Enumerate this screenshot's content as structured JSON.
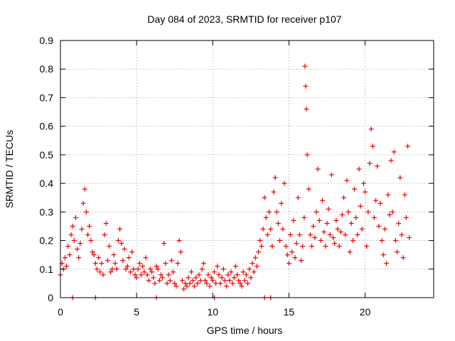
{
  "chart_data": {
    "type": "scatter",
    "title": "Day 084 of 2023, SRMTID for receiver p107",
    "xlabel": "GPS time / hours",
    "ylabel": "SRMTID / TECUs",
    "xlim": [
      0,
      24.5
    ],
    "ylim": [
      0,
      0.9
    ],
    "xticks": [
      0,
      5,
      10,
      15,
      20
    ],
    "xtick_labels": [
      "0",
      "5",
      "10",
      "15",
      "20"
    ],
    "yticks": [
      0,
      0.1,
      0.2,
      0.3,
      0.4,
      0.5,
      0.6,
      0.7,
      0.8,
      0.9
    ],
    "ytick_labels": [
      "0",
      "0.1",
      "0.2",
      "0.3",
      "0.4",
      "0.5",
      "0.6",
      "0.7",
      "0.8",
      "0.9"
    ],
    "grid": true,
    "marker": "+",
    "color": "#ee0000",
    "series": [
      {
        "name": "SRMTID",
        "x": [
          0.0,
          0.1,
          0.2,
          0.3,
          0.4,
          0.5,
          0.6,
          0.7,
          0.8,
          0.9,
          1.0,
          1.1,
          1.2,
          1.3,
          1.4,
          1.5,
          1.6,
          1.7,
          1.8,
          1.9,
          2.0,
          2.1,
          2.2,
          2.3,
          2.4,
          2.5,
          2.6,
          2.7,
          2.8,
          2.9,
          3.0,
          3.1,
          3.2,
          3.3,
          3.4,
          3.5,
          3.6,
          3.7,
          3.8,
          3.9,
          4.0,
          4.1,
          4.2,
          4.3,
          4.4,
          4.5,
          4.6,
          4.7,
          4.8,
          4.9,
          5.0,
          5.1,
          5.2,
          5.3,
          5.4,
          5.5,
          5.6,
          5.7,
          5.8,
          5.9,
          6.0,
          6.1,
          6.2,
          6.3,
          6.4,
          6.5,
          6.6,
          6.7,
          6.8,
          6.9,
          7.0,
          7.1,
          7.2,
          7.3,
          7.4,
          7.5,
          7.6,
          7.7,
          7.8,
          7.9,
          8.0,
          8.1,
          8.2,
          8.3,
          8.4,
          8.5,
          8.6,
          8.7,
          8.8,
          8.9,
          9.0,
          9.1,
          9.2,
          9.3,
          9.4,
          9.5,
          9.6,
          9.7,
          9.8,
          9.9,
          10.0,
          10.1,
          10.2,
          10.3,
          10.4,
          10.5,
          10.6,
          10.7,
          10.8,
          10.9,
          11.0,
          11.1,
          11.2,
          11.3,
          11.4,
          11.5,
          11.6,
          11.7,
          11.8,
          11.9,
          12.0,
          12.1,
          12.2,
          12.3,
          12.4,
          12.5,
          12.6,
          12.7,
          12.8,
          12.9,
          13.0,
          13.1,
          13.2,
          13.3,
          13.4,
          13.5,
          13.6,
          13.7,
          13.8,
          13.9,
          14.0,
          14.1,
          14.2,
          14.3,
          14.4,
          14.5,
          14.6,
          14.7,
          14.8,
          14.9,
          15.0,
          15.1,
          15.2,
          15.3,
          15.4,
          15.5,
          15.6,
          15.7,
          15.8,
          15.9,
          16.0,
          16.05,
          16.1,
          16.15,
          16.2,
          16.3,
          16.4,
          16.5,
          16.6,
          16.7,
          16.8,
          16.9,
          17.0,
          17.1,
          17.2,
          17.3,
          17.4,
          17.5,
          17.6,
          17.7,
          17.8,
          17.9,
          18.0,
          18.1,
          18.2,
          18.3,
          18.4,
          18.5,
          18.6,
          18.7,
          18.8,
          18.9,
          19.0,
          19.1,
          19.2,
          19.3,
          19.4,
          19.5,
          19.6,
          19.7,
          19.8,
          19.9,
          20.0,
          20.1,
          20.2,
          20.3,
          20.4,
          20.5,
          20.6,
          20.7,
          20.8,
          20.9,
          21.0,
          21.1,
          21.2,
          21.3,
          21.4,
          21.5,
          21.6,
          21.7,
          21.8,
          21.9,
          22.0,
          22.1,
          22.2,
          22.3,
          22.4,
          22.5,
          22.6,
          22.7,
          22.8,
          22.9,
          0.8,
          2.3,
          6.3,
          10.1,
          13.4,
          13.8
        ],
        "y": [
          0.08,
          0.12,
          0.1,
          0.14,
          0.11,
          0.18,
          0.15,
          0.22,
          0.25,
          0.2,
          0.28,
          0.17,
          0.14,
          0.19,
          0.24,
          0.33,
          0.38,
          0.3,
          0.22,
          0.25,
          0.2,
          0.16,
          0.15,
          0.12,
          0.1,
          0.14,
          0.09,
          0.12,
          0.08,
          0.22,
          0.26,
          0.13,
          0.18,
          0.09,
          0.1,
          0.15,
          0.12,
          0.1,
          0.2,
          0.24,
          0.19,
          0.13,
          0.17,
          0.1,
          0.11,
          0.14,
          0.09,
          0.16,
          0.1,
          0.08,
          0.07,
          0.1,
          0.12,
          0.08,
          0.11,
          0.09,
          0.14,
          0.08,
          0.06,
          0.1,
          0.09,
          0.07,
          0.05,
          0.11,
          0.1,
          0.06,
          0.08,
          0.07,
          0.19,
          0.12,
          0.05,
          0.08,
          0.06,
          0.13,
          0.09,
          0.05,
          0.04,
          0.12,
          0.2,
          0.16,
          0.06,
          0.03,
          0.05,
          0.04,
          0.07,
          0.05,
          0.09,
          0.06,
          0.04,
          0.07,
          0.05,
          0.08,
          0.06,
          0.1,
          0.12,
          0.06,
          0.05,
          0.08,
          0.04,
          0.07,
          0.06,
          0.09,
          0.05,
          0.11,
          0.08,
          0.05,
          0.07,
          0.1,
          0.06,
          0.04,
          0.08,
          0.06,
          0.09,
          0.05,
          0.07,
          0.11,
          0.08,
          0.06,
          0.05,
          0.04,
          0.09,
          0.06,
          0.08,
          0.05,
          0.1,
          0.07,
          0.12,
          0.09,
          0.14,
          0.11,
          0.16,
          0.2,
          0.18,
          0.24,
          0.35,
          0.28,
          0.22,
          0.3,
          0.24,
          0.18,
          0.37,
          0.42,
          0.3,
          0.26,
          0.2,
          0.33,
          0.24,
          0.4,
          0.18,
          0.15,
          0.12,
          0.22,
          0.16,
          0.27,
          0.14,
          0.19,
          0.35,
          0.22,
          0.13,
          0.18,
          0.28,
          0.81,
          0.74,
          0.66,
          0.5,
          0.38,
          0.22,
          0.18,
          0.25,
          0.21,
          0.3,
          0.45,
          0.27,
          0.2,
          0.34,
          0.23,
          0.18,
          0.26,
          0.31,
          0.22,
          0.43,
          0.21,
          0.19,
          0.27,
          0.24,
          0.18,
          0.23,
          0.29,
          0.35,
          0.22,
          0.41,
          0.3,
          0.16,
          0.26,
          0.2,
          0.38,
          0.28,
          0.22,
          0.45,
          0.32,
          0.24,
          0.4,
          0.37,
          0.18,
          0.3,
          0.47,
          0.59,
          0.53,
          0.28,
          0.34,
          0.46,
          0.25,
          0.33,
          0.2,
          0.15,
          0.24,
          0.12,
          0.36,
          0.29,
          0.48,
          0.3,
          0.51,
          0.2,
          0.16,
          0.26,
          0.42,
          0.22,
          0.14,
          0.36,
          0.28,
          0.53,
          0.21,
          0.0,
          0.0,
          0.0,
          0.0,
          0.0,
          0.0
        ]
      }
    ]
  }
}
